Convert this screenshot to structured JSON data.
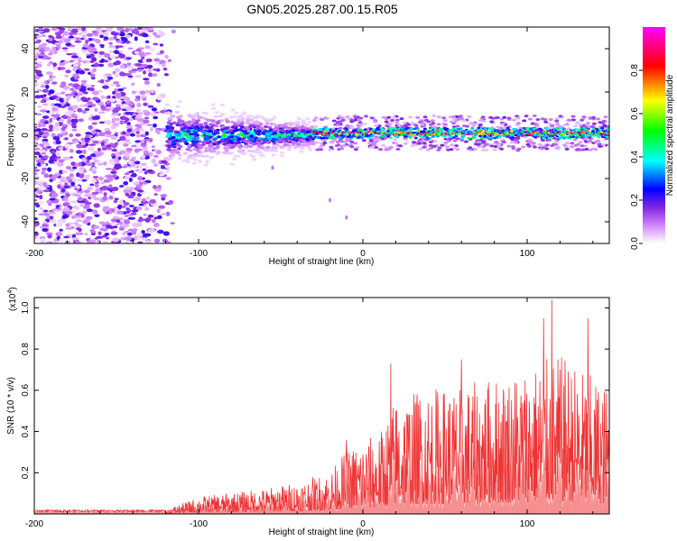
{
  "title": "GN05.2025.287.00.15.R05",
  "chart_data": [
    {
      "type": "heatmap",
      "xlabel": "Height of straight line (km)",
      "ylabel": "Frequency (Hz)",
      "xlim": [
        -200,
        150
      ],
      "ylim": [
        -50,
        50
      ],
      "x_ticks": [
        -200,
        -100,
        0,
        100
      ],
      "y_ticks": [
        -40,
        -20,
        0,
        20,
        40
      ],
      "colorbar": {
        "label": "Normalized spectral amplitude",
        "range": [
          0.0,
          1.0
        ],
        "ticks": [
          "0.0",
          "0.2",
          "0.4",
          "0.6",
          "0.8"
        ],
        "colors": [
          "#ffffff",
          "#d38cff",
          "#8a2be2",
          "#0000ff",
          "#00ffff",
          "#00ff00",
          "#ffff00",
          "#ff0000",
          "#ff00ff"
        ]
      },
      "features": [
        {
          "name": "broadband noise",
          "x_range": [
            -200,
            -115
          ],
          "freq_range": [
            -50,
            50
          ],
          "amplitude": 0.1
        },
        {
          "name": "scattered band",
          "x_range": [
            -120,
            -30
          ],
          "freq_center": 0,
          "freq_width": 10,
          "amplitude": 0.3
        },
        {
          "name": "narrow signal line",
          "x_range": [
            -30,
            150
          ],
          "freq_center": 1,
          "freq_width": 3,
          "amplitude": 0.9
        },
        {
          "name": "isolated points",
          "points": [
            [
              -55,
              -15
            ],
            [
              -20,
              -30
            ],
            [
              -10,
              -38
            ]
          ],
          "amplitude": 0.1
        }
      ]
    },
    {
      "type": "line",
      "xlabel": "Height of straight line (km)",
      "ylabel": "SNR (10 * v/v)",
      "y_multiplier": "(x10",
      "y_multiplier_exp": "4",
      "xlim": [
        -200,
        150
      ],
      "ylim": [
        0,
        1.05
      ],
      "x_ticks": [
        -200,
        -100,
        0,
        100
      ],
      "y_ticks": [
        "0.2",
        "0.4",
        "0.6",
        "0.8",
        "1.0"
      ],
      "color": "#ee3333",
      "envelope": {
        "x": [
          -200,
          -150,
          -120,
          -100,
          -80,
          -60,
          -40,
          -20,
          -10,
          0,
          10,
          20,
          40,
          60,
          80,
          100,
          120,
          150
        ],
        "y": [
          0.01,
          0.015,
          0.02,
          0.08,
          0.1,
          0.12,
          0.15,
          0.2,
          0.3,
          0.35,
          0.38,
          0.55,
          0.6,
          0.6,
          0.65,
          0.7,
          0.75,
          0.6
        ]
      },
      "peaks": [
        [
          -10,
          0.36
        ],
        [
          17,
          0.73
        ],
        [
          60,
          0.75
        ],
        [
          110,
          0.95
        ],
        [
          115,
          1.04
        ],
        [
          137,
          0.95
        ]
      ]
    }
  ]
}
